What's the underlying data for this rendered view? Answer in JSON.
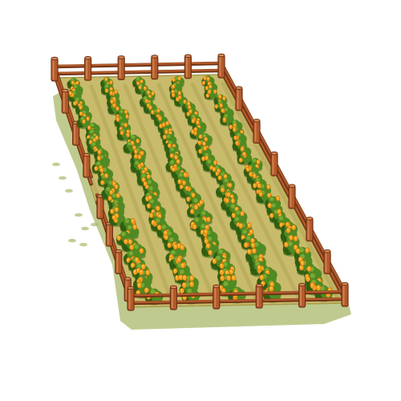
{
  "sprite": {
    "kind": "farm-plot-tile",
    "crop": "orange-flower-bush",
    "rows": 5,
    "fence": "wooden-rail-fence",
    "colors": {
      "background": "#ffffff",
      "ground_shadow": "#a9b86a",
      "soil": "#c9bb6c",
      "soil_dark": "#a79a4c",
      "furrow": "#b4a657",
      "leaf": "#4f8a22",
      "leaf_dark": "#2f5e12",
      "leaf_light": "#79ab33",
      "flower": "#f5a623",
      "flower_light": "#ffd24a",
      "fence_wood": "#b35a2b",
      "fence_dark": "#6e3315",
      "fence_light": "#d88a55"
    }
  }
}
